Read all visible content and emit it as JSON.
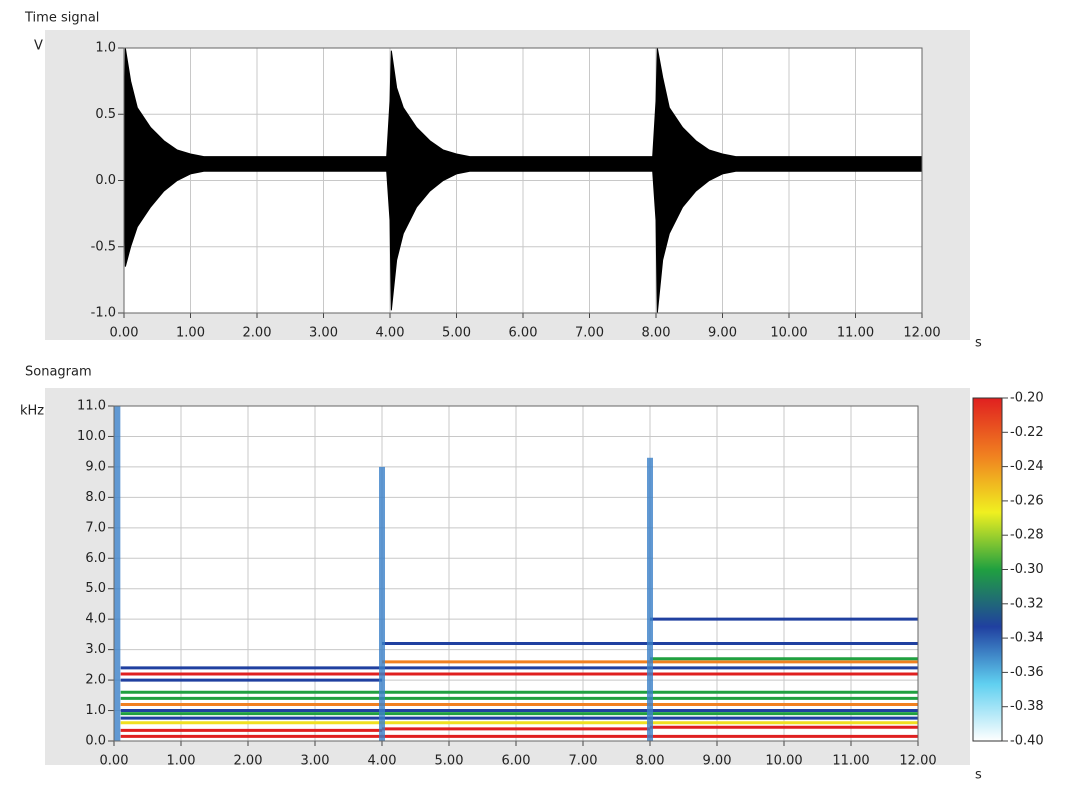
{
  "chart_data": [
    {
      "type": "band",
      "title": "Time signal",
      "y_label": "V",
      "x_label": "s",
      "color": "#000000",
      "grid": true,
      "x": [
        0,
        0.02,
        0.1,
        0.2,
        0.4,
        0.6,
        0.8,
        1.0,
        1.2,
        3.95,
        4.0,
        4.02,
        4.1,
        4.2,
        4.4,
        4.6,
        4.8,
        5.0,
        5.2,
        7.95,
        8.0,
        8.02,
        8.1,
        8.2,
        8.4,
        8.6,
        8.8,
        9.0,
        9.2,
        12
      ],
      "series": [
        {
          "color": "#000000",
          "values": [
            0.13,
            1.0,
            0.75,
            0.55,
            0.4,
            0.3,
            0.23,
            0.2,
            0.18,
            0.18,
            0.6,
            0.98,
            0.7,
            0.55,
            0.4,
            0.3,
            0.23,
            0.2,
            0.18,
            0.18,
            0.6,
            1.0,
            0.78,
            0.55,
            0.4,
            0.3,
            0.23,
            0.2,
            0.18,
            0.18
          ]
        },
        {
          "color": "#000000",
          "values": [
            0.1,
            -0.65,
            -0.5,
            -0.35,
            -0.2,
            -0.08,
            0.0,
            0.05,
            0.07,
            0.07,
            -0.3,
            -0.98,
            -0.6,
            -0.4,
            -0.2,
            -0.08,
            0.0,
            0.05,
            0.07,
            0.07,
            -0.3,
            -1.0,
            -0.6,
            -0.4,
            -0.2,
            -0.08,
            0.0,
            0.05,
            0.07,
            0.07
          ]
        }
      ],
      "xlim": [
        0,
        12
      ],
      "xticks": [
        {
          "value": 0,
          "label": "0.00"
        },
        {
          "value": 1,
          "label": "1.00"
        },
        {
          "value": 2,
          "label": "2.00"
        },
        {
          "value": 3,
          "label": "3.00"
        },
        {
          "value": 4,
          "label": "4.00"
        },
        {
          "value": 5,
          "label": "5.00"
        },
        {
          "value": 6,
          "label": "6.00"
        },
        {
          "value": 7,
          "label": "7.00"
        },
        {
          "value": 8,
          "label": "8.00"
        },
        {
          "value": 9,
          "label": "9.00"
        },
        {
          "value": 10,
          "label": "10.00"
        },
        {
          "value": 11,
          "label": "11.00"
        },
        {
          "value": 12,
          "label": "12.00"
        }
      ],
      "ylim": [
        -1,
        1
      ],
      "yticks": [
        {
          "value": -1,
          "label": "-1.0"
        },
        {
          "value": -0.5,
          "label": "-0.5"
        },
        {
          "value": 0,
          "label": "0.0"
        },
        {
          "value": 0.5,
          "label": "0.5"
        },
        {
          "value": 1,
          "label": "1.0"
        }
      ]
    },
    {
      "type": "heatmap",
      "title": "Sonagram",
      "y_label": "kHz",
      "x_label": "s",
      "grid": true,
      "segments": [
        {
          "x": [
            0.1,
            12
          ],
          "y": 0.15,
          "color": "#e02020"
        },
        {
          "x": [
            0.1,
            4
          ],
          "y": 0.35,
          "color": "#e02020"
        },
        {
          "x": [
            4,
            8
          ],
          "y": 0.4,
          "color": "#e02020"
        },
        {
          "x": [
            8,
            12
          ],
          "y": 0.45,
          "color": "#e02020"
        },
        {
          "x": [
            0.1,
            12
          ],
          "y": 0.6,
          "color": "#f0e020"
        },
        {
          "x": [
            0.1,
            12
          ],
          "y": 0.75,
          "color": "#2040a0"
        },
        {
          "x": [
            0.1,
            12
          ],
          "y": 0.9,
          "color": "#20a040"
        },
        {
          "x": [
            0.1,
            12
          ],
          "y": 1.0,
          "color": "#2040a0"
        },
        {
          "x": [
            0.1,
            12
          ],
          "y": 1.2,
          "color": "#f08020"
        },
        {
          "x": [
            0.1,
            12
          ],
          "y": 1.4,
          "color": "#20a040"
        },
        {
          "x": [
            0.1,
            12
          ],
          "y": 1.6,
          "color": "#20a040"
        },
        {
          "x": [
            0.1,
            4
          ],
          "y": 2.0,
          "color": "#2040a0"
        },
        {
          "x": [
            0.1,
            12
          ],
          "y": 2.2,
          "color": "#e02020"
        },
        {
          "x": [
            0.1,
            12
          ],
          "y": 2.4,
          "color": "#2040a0"
        },
        {
          "x": [
            4,
            12
          ],
          "y": 2.6,
          "color": "#f08020"
        },
        {
          "x": [
            8,
            12
          ],
          "y": 2.7,
          "color": "#20a040"
        },
        {
          "x": [
            4,
            12
          ],
          "y": 3.2,
          "color": "#2040a0"
        },
        {
          "x": [
            8,
            12
          ],
          "y": 4.0,
          "color": "#2040a0"
        }
      ],
      "bursts": [
        {
          "x": 0.05,
          "top": 11
        },
        {
          "x": 4.0,
          "top": 9
        },
        {
          "x": 8.0,
          "top": 9.3
        }
      ],
      "xlim": [
        0,
        12
      ],
      "xticks": [
        {
          "value": 0,
          "label": "0.00"
        },
        {
          "value": 1,
          "label": "1.00"
        },
        {
          "value": 2,
          "label": "2.00"
        },
        {
          "value": 3,
          "label": "3.00"
        },
        {
          "value": 4,
          "label": "4.00"
        },
        {
          "value": 5,
          "label": "5.00"
        },
        {
          "value": 6,
          "label": "6.00"
        },
        {
          "value": 7,
          "label": "7.00"
        },
        {
          "value": 8,
          "label": "8.00"
        },
        {
          "value": 9,
          "label": "9.00"
        },
        {
          "value": 10,
          "label": "10.00"
        },
        {
          "value": 11,
          "label": "11.00"
        },
        {
          "value": 12,
          "label": "12.00"
        }
      ],
      "ylim": [
        0,
        11
      ],
      "yticks": [
        {
          "value": 0,
          "label": "0.0"
        },
        {
          "value": 1,
          "label": "1.0"
        },
        {
          "value": 2,
          "label": "2.0"
        },
        {
          "value": 3,
          "label": "3.0"
        },
        {
          "value": 4,
          "label": "4.0"
        },
        {
          "value": 5,
          "label": "5.0"
        },
        {
          "value": 6,
          "label": "6.0"
        },
        {
          "value": 7,
          "label": "7.0"
        },
        {
          "value": 8,
          "label": "8.0"
        },
        {
          "value": 9,
          "label": "9.0"
        },
        {
          "value": 10,
          "label": "10.0"
        },
        {
          "value": 11,
          "label": "11.0"
        }
      ],
      "colormap": [
        "#ffffff",
        "#60d0f0",
        "#2040a0",
        "#20a040",
        "#f0f020",
        "#f08020",
        "#e02020"
      ],
      "colorbar_lim": [
        -0.4,
        -0.2
      ],
      "colorbar_ticks": [
        {
          "value": -0.4,
          "label": "-0.40"
        },
        {
          "value": -0.38,
          "label": "-0.38"
        },
        {
          "value": -0.36,
          "label": "-0.36"
        },
        {
          "value": -0.34,
          "label": "-0.34"
        },
        {
          "value": -0.32,
          "label": "-0.32"
        },
        {
          "value": -0.3,
          "label": "-0.30"
        },
        {
          "value": -0.28,
          "label": "-0.28"
        },
        {
          "value": -0.26,
          "label": "-0.26"
        },
        {
          "value": -0.24,
          "label": "-0.24"
        },
        {
          "value": -0.22,
          "label": "-0.22"
        },
        {
          "value": -0.2,
          "label": "-0.20"
        }
      ]
    }
  ]
}
